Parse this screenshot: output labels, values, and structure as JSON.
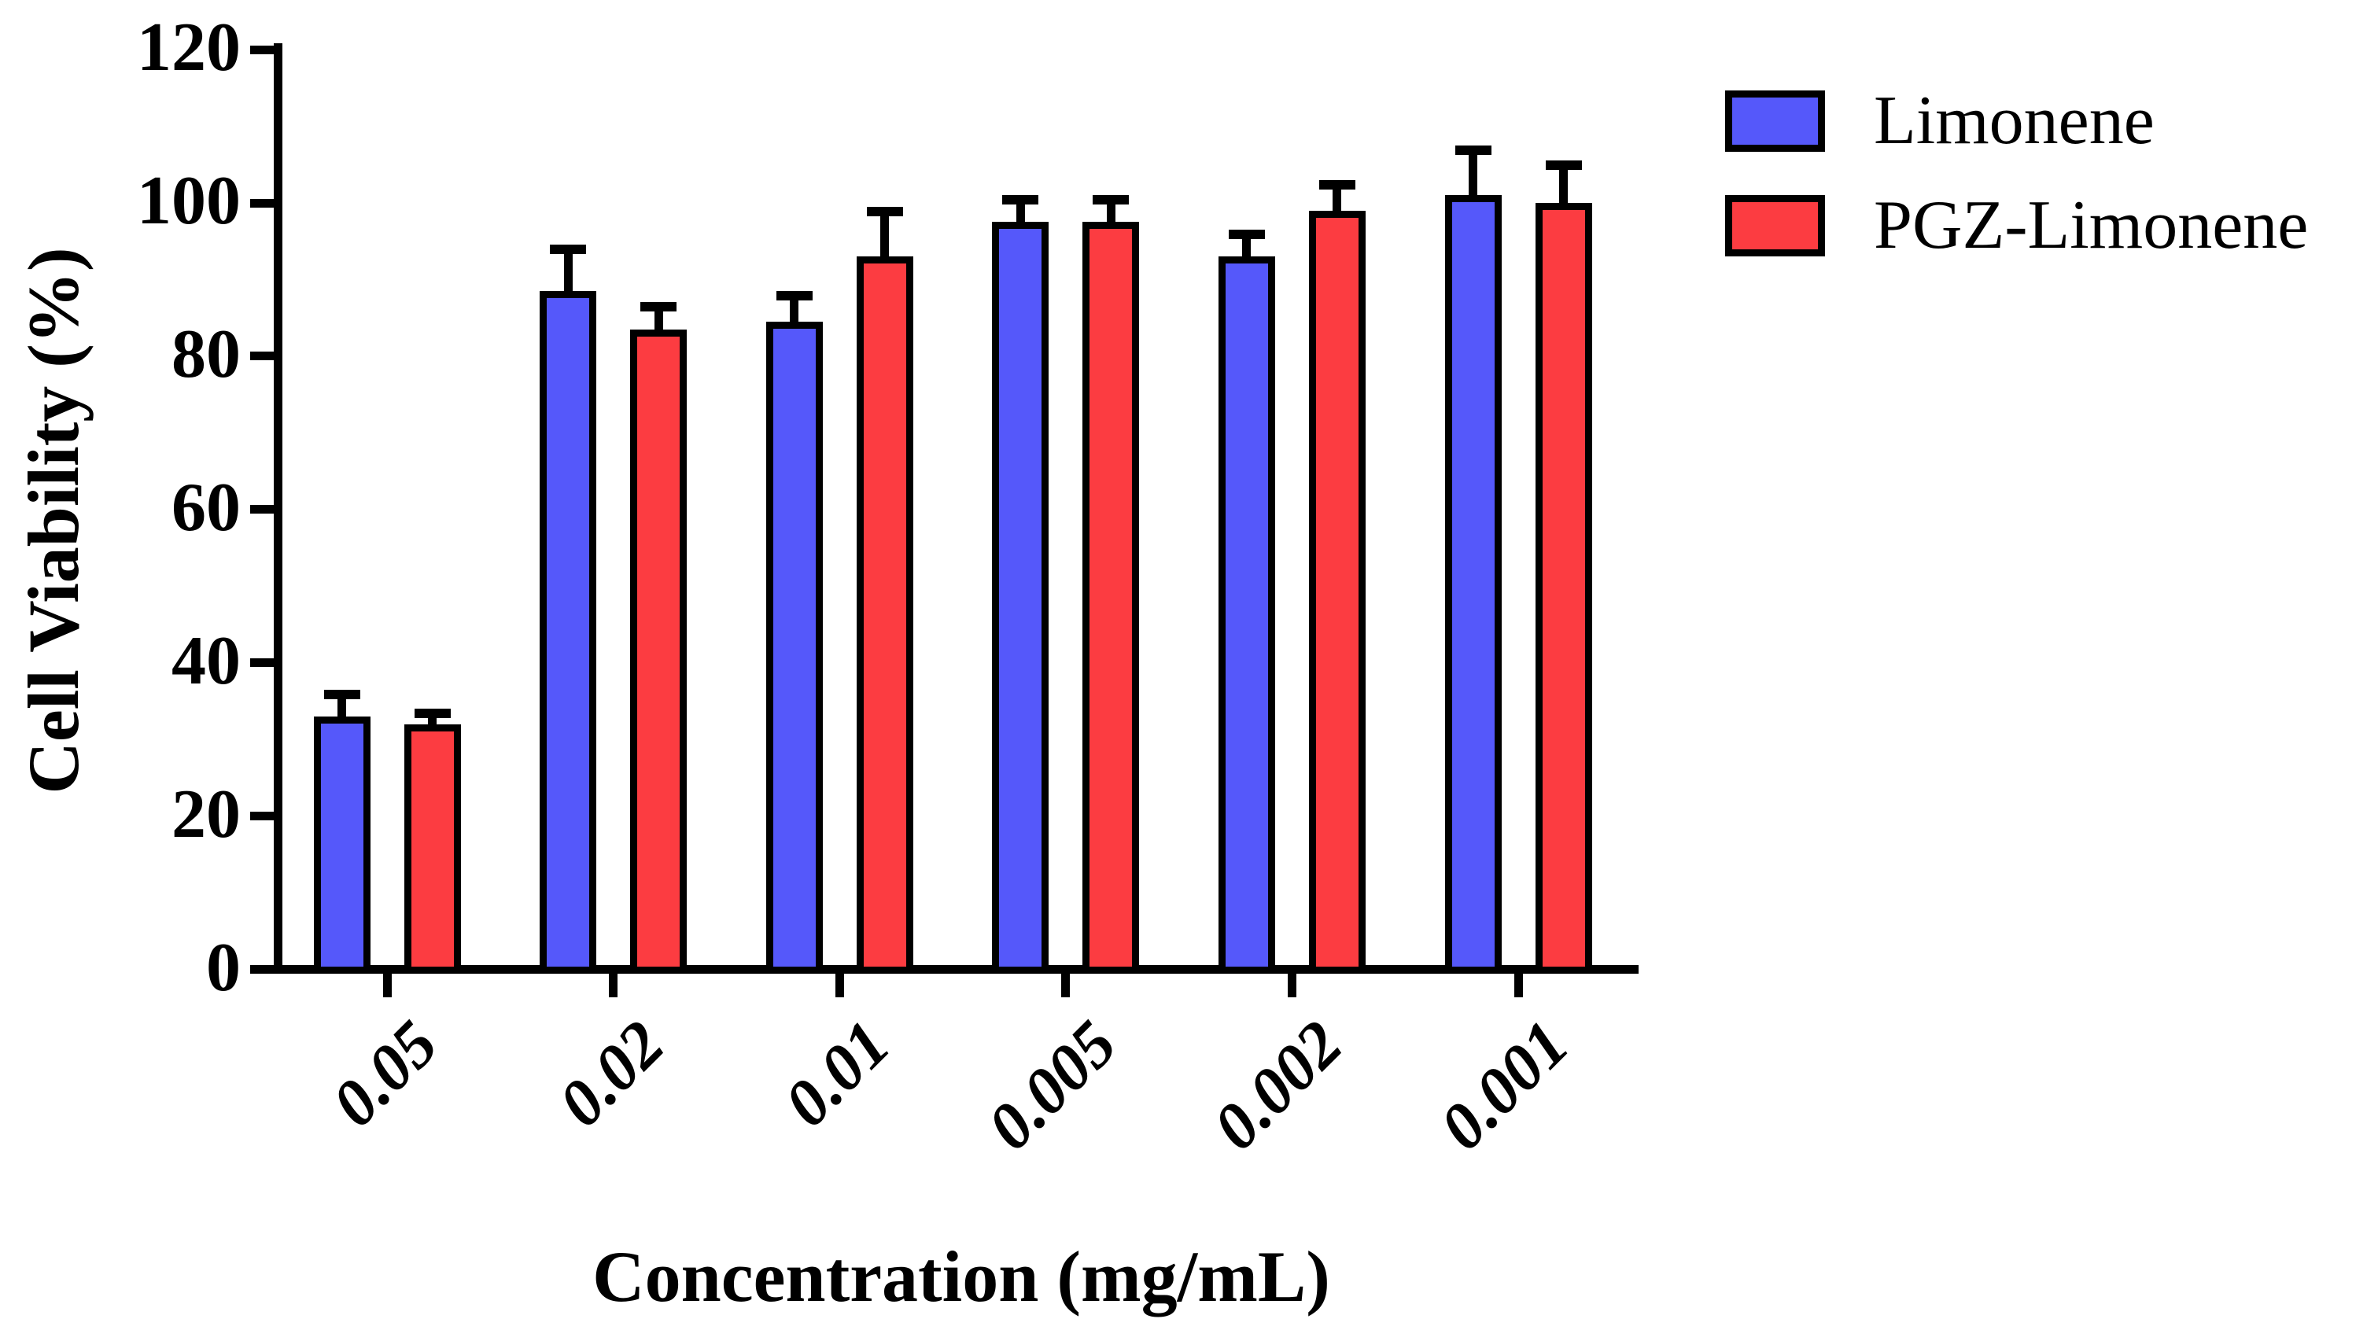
{
  "chart_data": {
    "type": "bar",
    "title": "",
    "xlabel": "Concentration (mg/mL)",
    "ylabel": "Cell Viability (%)",
    "categories": [
      "0.05",
      "0.02",
      "0.01",
      "0.005",
      "0.002",
      "0.001"
    ],
    "series": [
      {
        "name": "Limonene",
        "color": "#5558FA",
        "values": [
          33,
          88.5,
          84.5,
          97.5,
          93,
          101
        ],
        "errors_plus": [
          2.5,
          5,
          3,
          2.5,
          2.5,
          5.5
        ]
      },
      {
        "name": "PGZ-Limonene",
        "color": "#FC3C41",
        "values": [
          32,
          83.5,
          93,
          97.5,
          99,
          100
        ],
        "errors_plus": [
          1,
          2.5,
          5.5,
          2.5,
          3,
          4.5
        ]
      }
    ],
    "ylim": [
      0,
      120
    ],
    "ytick_step": 20,
    "yticks": [
      "0",
      "20",
      "40",
      "60",
      "80",
      "100",
      "120"
    ],
    "grid": "off",
    "legend_position": "top-right",
    "bar_outline_color": "#000000",
    "axis_color": "#000000",
    "error_bar_direction": "plus-only"
  }
}
